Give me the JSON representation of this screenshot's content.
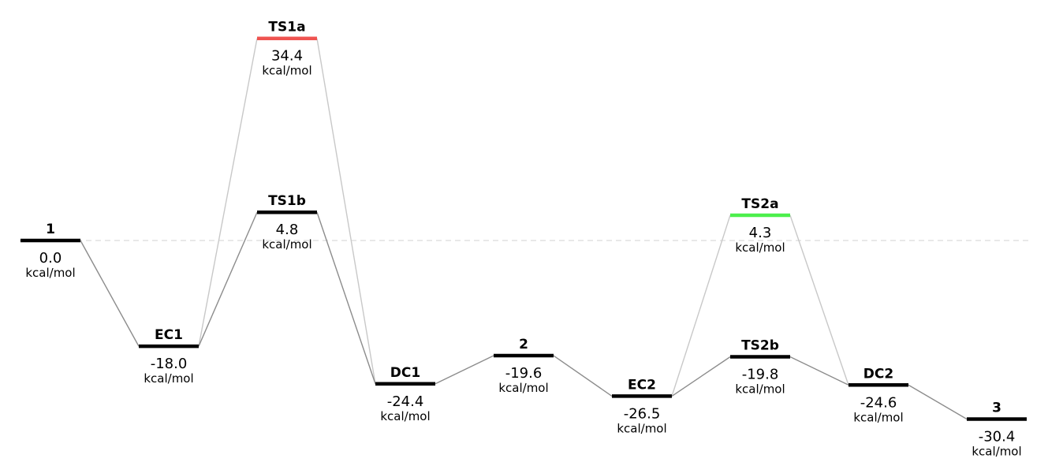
{
  "diagram": {
    "type": "energy-profile",
    "unit": "kcal/mol",
    "reference_line": {
      "energy": 0.0,
      "style": "dashed"
    },
    "colors": {
      "level_default": "#000000",
      "level_ts1a": "#ef5350",
      "level_ts2a": "#4cef4c",
      "connector_main": "#8c8c8c",
      "connector_alt": "#c8c8c8",
      "reference": "#d9d9d9"
    },
    "levels": [
      {
        "id": "l1",
        "name": "1",
        "value": "0.0",
        "energy": 0.0,
        "column": 0,
        "color": "#000000"
      },
      {
        "id": "EC1",
        "name": "EC1",
        "value": "-18.0",
        "energy": -18.0,
        "column": 1,
        "color": "#000000"
      },
      {
        "id": "TS1a",
        "name": "TS1a",
        "value": "34.4",
        "energy": 34.4,
        "column": 2,
        "color": "#ef5350"
      },
      {
        "id": "TS1b",
        "name": "TS1b",
        "value": "4.8",
        "energy": 4.8,
        "column": 2,
        "color": "#000000"
      },
      {
        "id": "DC1",
        "name": "DC1",
        "value": "-24.4",
        "energy": -24.4,
        "column": 3,
        "color": "#000000"
      },
      {
        "id": "l2",
        "name": "2",
        "value": "-19.6",
        "energy": -19.6,
        "column": 4,
        "color": "#000000"
      },
      {
        "id": "EC2",
        "name": "EC2",
        "value": "-26.5",
        "energy": -26.5,
        "column": 5,
        "color": "#000000"
      },
      {
        "id": "TS2a",
        "name": "TS2a",
        "value": "4.3",
        "energy": 4.3,
        "column": 6,
        "color": "#4cef4c"
      },
      {
        "id": "TS2b",
        "name": "TS2b",
        "value": "-19.8",
        "energy": -19.8,
        "column": 6,
        "color": "#000000"
      },
      {
        "id": "DC2",
        "name": "DC2",
        "value": "-24.6",
        "energy": -24.6,
        "column": 7,
        "color": "#000000"
      },
      {
        "id": "l3",
        "name": "3",
        "value": "-30.4",
        "energy": -30.4,
        "column": 8,
        "color": "#000000"
      }
    ],
    "connections": [
      {
        "from": "l1",
        "to": "EC1",
        "style": "main"
      },
      {
        "from": "EC1",
        "to": "TS1a",
        "style": "alt"
      },
      {
        "from": "TS1a",
        "to": "DC1",
        "style": "alt"
      },
      {
        "from": "EC1",
        "to": "TS1b",
        "style": "main"
      },
      {
        "from": "TS1b",
        "to": "DC1",
        "style": "main"
      },
      {
        "from": "DC1",
        "to": "l2",
        "style": "main"
      },
      {
        "from": "l2",
        "to": "EC2",
        "style": "main"
      },
      {
        "from": "EC2",
        "to": "TS2a",
        "style": "alt"
      },
      {
        "from": "TS2a",
        "to": "DC2",
        "style": "alt"
      },
      {
        "from": "EC2",
        "to": "TS2b",
        "style": "main"
      },
      {
        "from": "TS2b",
        "to": "DC2",
        "style": "main"
      },
      {
        "from": "DC2",
        "to": "l3",
        "style": "main"
      }
    ]
  }
}
